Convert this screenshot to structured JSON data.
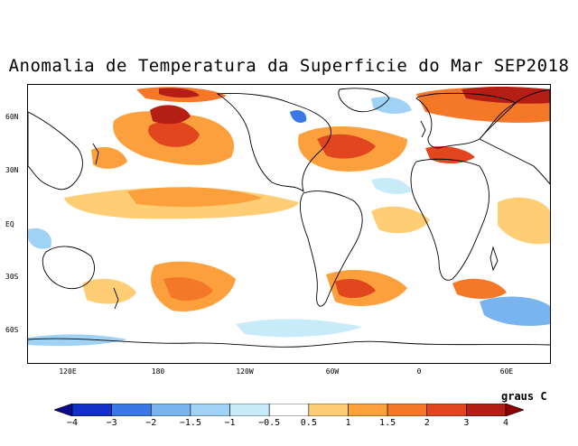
{
  "title": "Anomalia de Temperatura da Superficie do Mar SEP2018",
  "y_axis_labels": [
    "60N",
    "30N",
    "EQ",
    "30S",
    "60S"
  ],
  "x_axis_labels": [
    "120E",
    "180",
    "120W",
    "60W",
    "0",
    "60E"
  ],
  "units": "graus C",
  "colorbar": {
    "labels": [
      "−4",
      "−3",
      "−2",
      "−1.5",
      "−1",
      "−0.5",
      "0.5",
      "1",
      "1.5",
      "2",
      "3",
      "4"
    ],
    "colors": [
      "#0a0a8c",
      "#1030c8",
      "#3a78e6",
      "#78b4f0",
      "#a0d2f5",
      "#c8ebfa",
      "#ffffff",
      "#ffcd73",
      "#fba03c",
      "#f57828",
      "#e1461e",
      "#b41e14",
      "#8c0000"
    ]
  },
  "colors": {
    "land_outline": "#000000",
    "warm_light": "#ffcd73",
    "warm_mid": "#fba03c",
    "warm_strong": "#f57828",
    "hot": "#e1461e",
    "very_hot": "#b41e14",
    "cool_light": "#c8ebfa",
    "cool_mid": "#a0d2f5",
    "cool_strong": "#78b4f0",
    "cold": "#3a78e6"
  }
}
